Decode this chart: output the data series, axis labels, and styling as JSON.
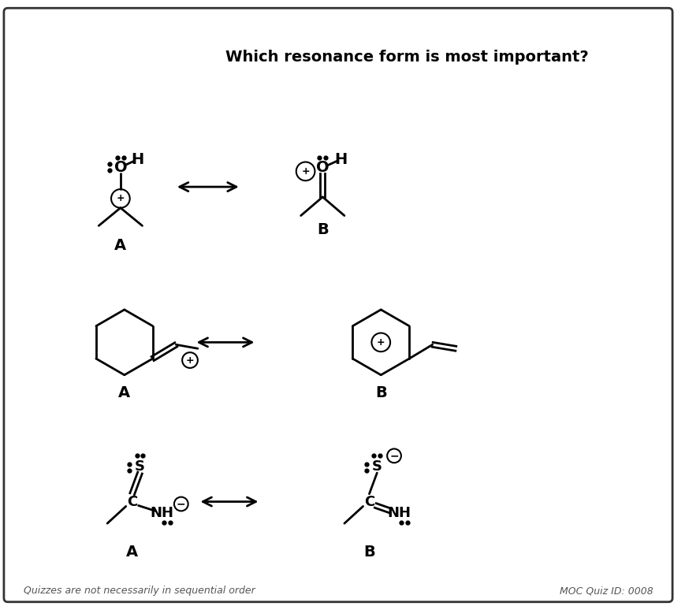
{
  "title": "Which resonance form is most important?",
  "footer_left": "Quizzes are not necessarily in sequential order",
  "footer_right": "MOC Quiz ID: 0008",
  "bg_color": "#ffffff",
  "border_color": "#333333",
  "text_color": "#000000"
}
